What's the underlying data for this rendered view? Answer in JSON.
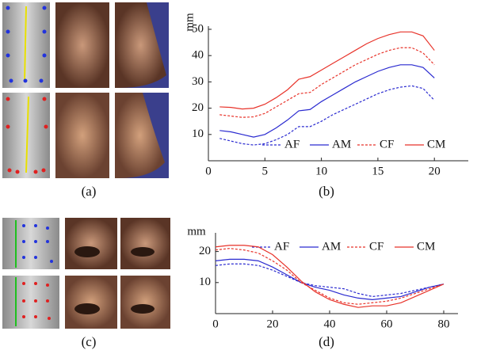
{
  "captions": [
    "(a)",
    "(b)",
    "(c)",
    "(d)"
  ],
  "chart_data": [
    {
      "type": "line",
      "ylabel": "mm",
      "x": [
        1,
        2,
        3,
        4,
        5,
        6,
        7,
        8,
        9,
        10,
        11,
        12,
        13,
        14,
        15,
        16,
        17,
        18,
        19,
        20
      ],
      "xlim": [
        0,
        23
      ],
      "xticks": [
        0,
        5,
        10,
        15,
        20
      ],
      "ylim": [
        0,
        50
      ],
      "yticks": [
        10,
        20,
        30,
        40,
        50
      ],
      "legend": "lower right",
      "series": [
        {
          "name": "AF",
          "color": "#2a2ad0",
          "dashed": true,
          "values": [
            8.5,
            7.5,
            6.5,
            6,
            6.5,
            8,
            10,
            13,
            13,
            15,
            17.5,
            19.5,
            21.5,
            23.5,
            25.5,
            27,
            28,
            28.5,
            27.5,
            23
          ]
        },
        {
          "name": "AM",
          "color": "#2a2ad0",
          "dashed": false,
          "values": [
            11.5,
            11,
            10,
            9,
            10,
            12.5,
            15.5,
            19,
            19.5,
            22.5,
            25,
            27.5,
            30,
            32,
            34,
            35.5,
            36.5,
            36.5,
            35.5,
            31.5
          ]
        },
        {
          "name": "CF",
          "color": "#e8332a",
          "dashed": true,
          "values": [
            17.5,
            17,
            16.5,
            16.7,
            18,
            20.5,
            23,
            25.5,
            26,
            29,
            31.5,
            34,
            36.5,
            38.5,
            40.5,
            42,
            43,
            43,
            41,
            36.5
          ]
        },
        {
          "name": "CM",
          "color": "#e8332a",
          "dashed": false,
          "values": [
            20.5,
            20.3,
            19.7,
            20,
            21.5,
            24,
            27,
            31,
            32,
            34.5,
            37,
            39.5,
            42,
            44.5,
            46.5,
            48,
            49,
            49,
            47.5,
            42
          ]
        }
      ]
    },
    {
      "type": "line",
      "ylabel": "mm",
      "x": [
        0,
        5,
        10,
        15,
        20,
        25,
        30,
        35,
        40,
        45,
        50,
        55,
        60,
        65,
        70,
        75,
        80
      ],
      "xlim": [
        0,
        85
      ],
      "xticks": [
        0,
        20,
        40,
        60,
        80
      ],
      "ylim": [
        0,
        25
      ],
      "yticks": [
        10,
        20
      ],
      "legend": "upper right",
      "series": [
        {
          "name": "AF",
          "color": "#2a2ad0",
          "dashed": true,
          "values": [
            15.5,
            16,
            16,
            15.5,
            14,
            12,
            10,
            9,
            8.5,
            8,
            6.5,
            5.5,
            6,
            6.5,
            7.5,
            8.5,
            9.5
          ]
        },
        {
          "name": "AM",
          "color": "#2a2ad0",
          "dashed": false,
          "values": [
            17,
            17.5,
            17.5,
            17,
            15,
            12.5,
            10,
            8.5,
            7.5,
            6,
            5,
            4.5,
            5,
            5.5,
            7,
            8.5,
            9.5
          ]
        },
        {
          "name": "CF",
          "color": "#e8332a",
          "dashed": true,
          "values": [
            20.5,
            21,
            20.5,
            19.5,
            17,
            14,
            10,
            7.5,
            5,
            3.5,
            3,
            3.5,
            4,
            5,
            6.5,
            8,
            9.5
          ]
        },
        {
          "name": "CM",
          "color": "#e8332a",
          "dashed": false,
          "values": [
            21.5,
            22,
            22,
            21.5,
            19,
            15,
            10.5,
            7,
            4.5,
            3,
            2,
            2.5,
            2.5,
            3.5,
            5.5,
            7.5,
            9.5
          ]
        }
      ]
    }
  ]
}
